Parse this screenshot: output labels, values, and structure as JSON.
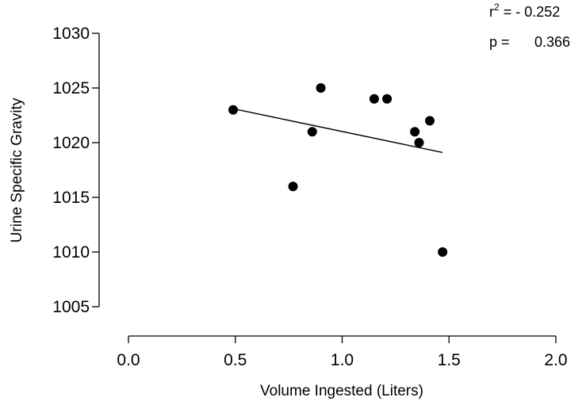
{
  "chart_data": {
    "type": "scatter",
    "title": "",
    "xlabel": "Volume Ingested (Liters)",
    "ylabel": "Urine Specific Gravity",
    "xlim": [
      0,
      2
    ],
    "ylim": [
      1005,
      1030
    ],
    "x_ticks": [
      "0.0",
      "0.5",
      "1.0",
      "1.5",
      "2.0"
    ],
    "y_ticks": [
      "1005",
      "1010",
      "1015",
      "1020",
      "1025",
      "1030"
    ],
    "grid": false,
    "legend": "none",
    "series": [
      {
        "points": [
          {
            "x": 0.49,
            "y": 1023
          },
          {
            "x": 0.77,
            "y": 1016
          },
          {
            "x": 0.86,
            "y": 1021
          },
          {
            "x": 0.9,
            "y": 1025
          },
          {
            "x": 1.15,
            "y": 1024
          },
          {
            "x": 1.21,
            "y": 1024
          },
          {
            "x": 1.34,
            "y": 1021
          },
          {
            "x": 1.36,
            "y": 1020
          },
          {
            "x": 1.41,
            "y": 1022
          },
          {
            "x": 1.47,
            "y": 1010
          }
        ],
        "color": "#000000"
      }
    ],
    "fit_line": {
      "x": [
        0.49,
        1.47
      ],
      "y": [
        1023.1,
        1019.1
      ]
    },
    "annotations": {
      "r2_label": "r",
      "r2_sup": "2",
      "r2_value": " = - 0.252",
      "p_label": "p =",
      "p_value": "0.366"
    }
  }
}
